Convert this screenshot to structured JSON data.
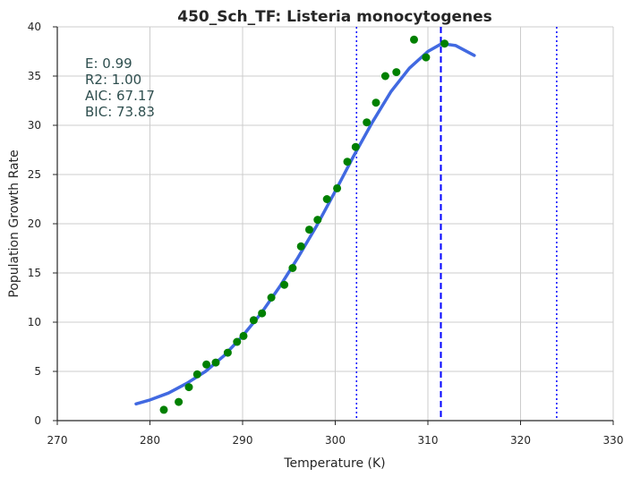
{
  "chart_data": {
    "type": "scatter",
    "title": "450_Sch_TF: Listeria monocytogenes",
    "xlabel": "Temperature (K)",
    "ylabel": "Population Growth Rate",
    "xlim": [
      270,
      330
    ],
    "ylim": [
      0,
      40
    ],
    "xticks": [
      270,
      280,
      290,
      300,
      310,
      320,
      330
    ],
    "yticks": [
      0,
      5,
      10,
      15,
      20,
      25,
      30,
      35,
      40
    ],
    "grid": true,
    "stats": [
      "E:  0.99",
      "R2:  1.00",
      "AIC: 67.17",
      "BIC: 73.83"
    ],
    "points": {
      "color": "#008000",
      "x": [
        281.5,
        283.1,
        284.2,
        285.1,
        286.1,
        287.1,
        288.4,
        289.4,
        290.1,
        291.2,
        292.1,
        293.1,
        294.5,
        295.4,
        296.3,
        297.2,
        298.1,
        299.1,
        300.2,
        301.3,
        302.2,
        303.4,
        304.4,
        305.4,
        306.6,
        308.5,
        309.8,
        311.8
      ],
      "y": [
        1.1,
        1.9,
        3.4,
        4.7,
        5.7,
        5.9,
        6.9,
        8.0,
        8.6,
        10.2,
        10.9,
        12.5,
        13.8,
        15.5,
        17.7,
        19.4,
        20.4,
        22.5,
        23.6,
        26.3,
        27.8,
        30.3,
        32.3,
        35.0,
        35.4,
        38.7,
        36.9,
        38.3
      ]
    },
    "fit_curve": {
      "color": "#4169E1",
      "x": [
        278.5,
        280,
        282,
        284,
        286,
        288,
        290,
        292,
        294,
        296,
        298,
        300,
        302,
        304,
        306,
        308,
        310,
        311.5,
        313,
        315
      ],
      "y": [
        1.7,
        2.1,
        2.8,
        3.8,
        5.0,
        6.6,
        8.6,
        10.9,
        13.6,
        16.6,
        19.8,
        23.3,
        26.9,
        30.3,
        33.4,
        35.8,
        37.5,
        38.3,
        38.1,
        37.1
      ]
    },
    "vlines": [
      {
        "x": 302.3,
        "style": "dotted",
        "color": "#0000ff"
      },
      {
        "x": 311.4,
        "style": "dashed",
        "color": "#0000ff"
      },
      {
        "x": 323.9,
        "style": "dotted",
        "color": "#0000ff"
      }
    ]
  }
}
